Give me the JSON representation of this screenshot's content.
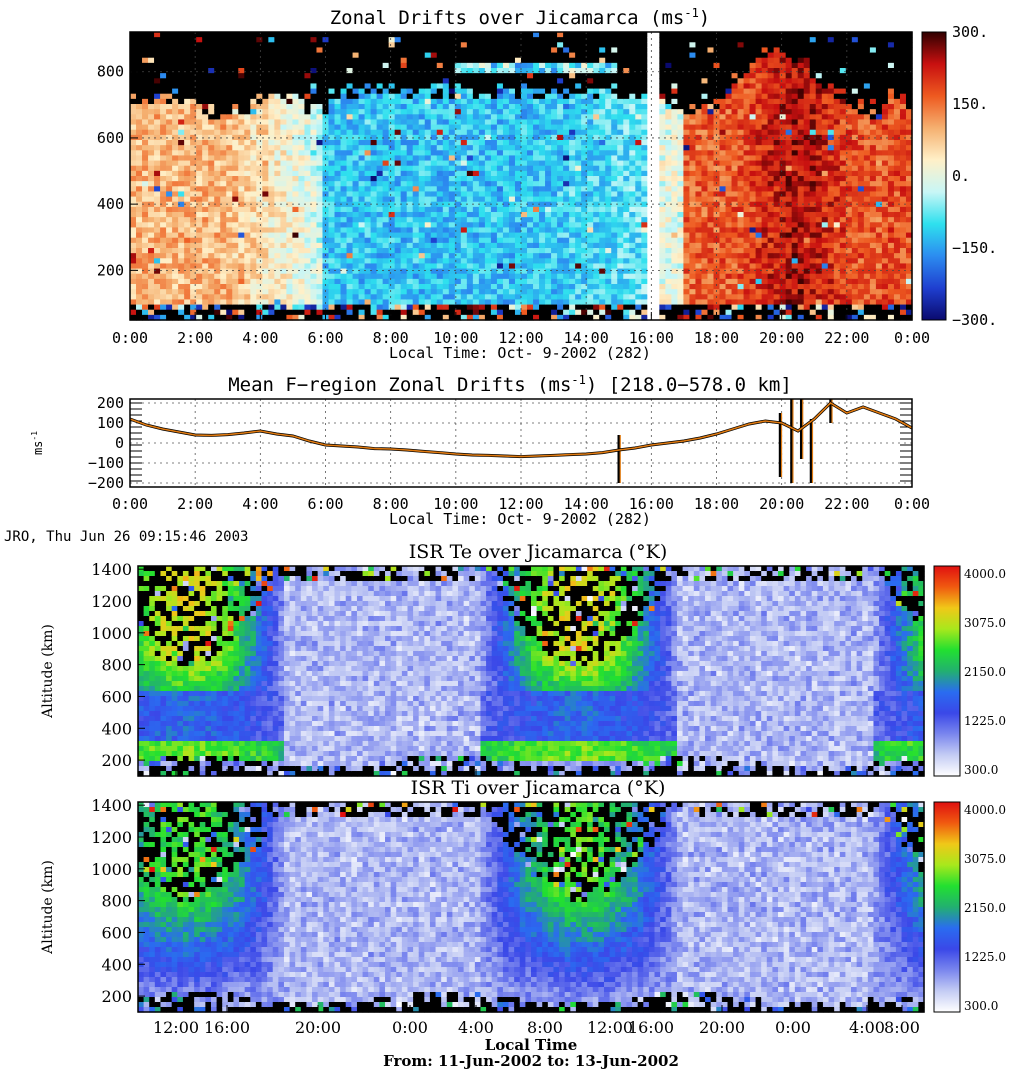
{
  "stamp": "JRO, Thu Jun 26 09:15:46 2003",
  "colors": {
    "drift_scale": [
      "#0a0a6e",
      "#1f3fd0",
      "#2c8cf0",
      "#2ee0ee",
      "#c8f6f6",
      "#fff0c8",
      "#f5b070",
      "#ee5a20",
      "#c81010",
      "#300000"
    ],
    "temp_scale": [
      "#ffffff",
      "#c4ccf4",
      "#7a86ee",
      "#3a48e8",
      "#2a6cf0",
      "#22b070",
      "#22e030",
      "#a8e81c",
      "#f0c818",
      "#f05a10",
      "#e01010"
    ],
    "mean_line": "#e07a10"
  },
  "chart_data": [
    {
      "type": "heatmap",
      "title_main": "Zonal Drifts over Jicamarca (ms",
      "title_sup": "-1",
      "title_end": ")",
      "xlabel": "Local Time: Oct- 9-2002 (282)",
      "x_ticks": [
        "0:00",
        "2:00",
        "4:00",
        "6:00",
        "8:00",
        "10:00",
        "12:00",
        "14:00",
        "16:00",
        "18:00",
        "20:00",
        "22:00",
        "0:00"
      ],
      "xlim": [
        0,
        24
      ],
      "y_ticks": [
        200,
        400,
        600,
        800
      ],
      "ylim": [
        50,
        920
      ],
      "colorbar_ticks": [
        "300.",
        "150.",
        "0.",
        "−150.",
        "−300."
      ],
      "zlim": [
        -300,
        300
      ],
      "grid": true
    },
    {
      "type": "line",
      "title_main": "Mean F−region Zonal Drifts (ms",
      "title_sup": "-1",
      "title_end": ") [218.0−578.0 km]",
      "xlabel": "Local Time: Oct- 9-2002 (282)",
      "ylabel": "ms",
      "ylabel_sup": "-1",
      "x_ticks": [
        "0:00",
        "2:00",
        "4:00",
        "6:00",
        "8:00",
        "10:00",
        "12:00",
        "14:00",
        "16:00",
        "18:00",
        "20:00",
        "22:00",
        "0:00"
      ],
      "xlim": [
        0,
        24
      ],
      "y_ticks": [
        "200",
        "100",
        "0",
        "−100",
        "−200"
      ],
      "ylim": [
        -220,
        220
      ],
      "grid": true,
      "x": [
        0,
        0.5,
        1,
        1.5,
        2,
        2.5,
        3,
        3.5,
        4,
        4.5,
        5,
        5.5,
        6,
        6.5,
        7,
        7.5,
        8,
        8.5,
        9,
        9.5,
        10,
        10.5,
        11,
        11.5,
        12,
        12.5,
        13,
        13.5,
        14,
        14.5,
        15,
        15.5,
        16,
        16.5,
        17,
        17.5,
        18,
        18.5,
        19,
        19.5,
        20,
        20.5,
        21,
        21.5,
        22,
        22.5,
        23,
        23.5,
        24
      ],
      "y": [
        120,
        90,
        70,
        55,
        40,
        38,
        42,
        50,
        60,
        45,
        35,
        10,
        -10,
        -15,
        -20,
        -28,
        -30,
        -35,
        -42,
        -48,
        -55,
        -60,
        -62,
        -65,
        -68,
        -65,
        -62,
        -58,
        -55,
        -48,
        -35,
        -25,
        -10,
        0,
        10,
        25,
        45,
        70,
        95,
        110,
        100,
        60,
        120,
        200,
        150,
        180,
        150,
        120,
        75
      ]
    },
    {
      "type": "heatmap",
      "title_main": "ISR Te over Jicamarca (°K)",
      "ylabel": "Altitude (km)",
      "y_ticks": [
        200,
        400,
        600,
        800,
        1000,
        1200,
        1400
      ],
      "ylim": [
        100,
        1420
      ],
      "colorbar_ticks": [
        "4000.0",
        "3075.0",
        "2150.0",
        "1225.0",
        "300.0"
      ],
      "zlim": [
        300,
        4000
      ]
    },
    {
      "type": "heatmap",
      "title_main": "ISR Ti over Jicamarca (°K)",
      "ylabel": "Altitude (km)",
      "y_ticks": [
        200,
        400,
        600,
        800,
        1000,
        1200,
        1400
      ],
      "ylim": [
        100,
        1420
      ],
      "x_ticks": [
        "12:00",
        "16:00",
        "20:00",
        "0:00",
        "4:00",
        "8:00",
        "12:00",
        "16:00",
        "20:00",
        "0:00",
        "4:00",
        "8:00"
      ],
      "xlabel": "Local Time",
      "subtitle": "From: 11-Jun-2002  to: 13-Jun-2002",
      "colorbar_ticks": [
        "4000.0",
        "3075.0",
        "2150.0",
        "1225.0",
        "300.0"
      ],
      "zlim": [
        300,
        4000
      ]
    }
  ]
}
